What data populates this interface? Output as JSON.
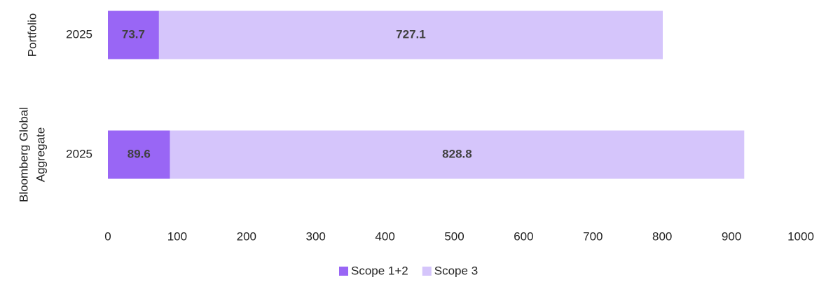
{
  "chart_data": {
    "type": "stacked_barh",
    "categories": [
      "2025",
      "2025"
    ],
    "groups": [
      [
        "Portfolio"
      ],
      [
        "Bloomberg Global",
        "Aggregate"
      ]
    ],
    "series": [
      {
        "name": "Scope 1+2",
        "color": "#9966f5",
        "values": [
          73.7,
          89.6
        ]
      },
      {
        "name": "Scope 3",
        "color": "#d5c5fb",
        "values": [
          727.1,
          828.8
        ]
      }
    ],
    "xlim": [
      0,
      1000
    ],
    "xticks": [
      0,
      100,
      200,
      300,
      400,
      500,
      600,
      700,
      800,
      900,
      1000
    ],
    "grid": false,
    "legend": "bottom"
  }
}
